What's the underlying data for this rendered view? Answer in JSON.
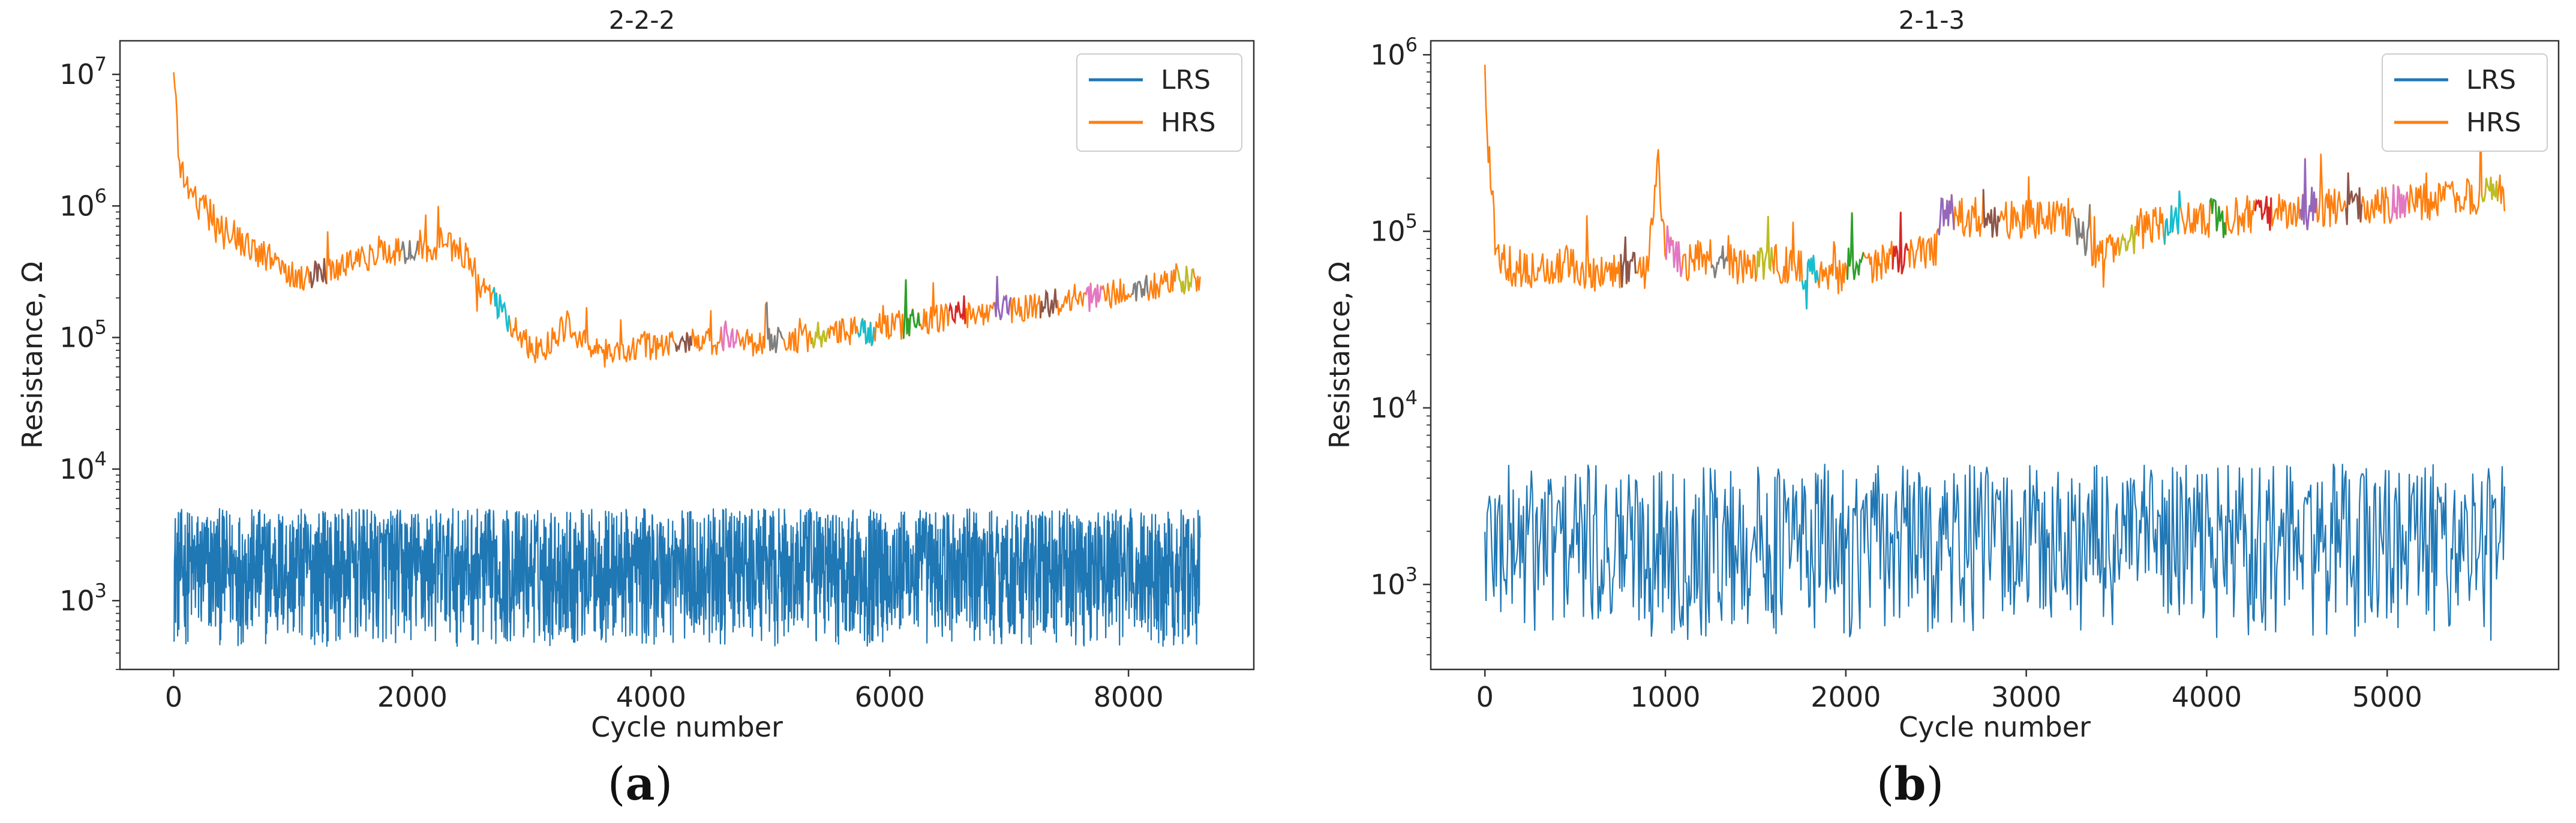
{
  "colors": {
    "lrs": "#1f77b4",
    "hrs": "#ff7f0e",
    "segments": [
      "#2ca02c",
      "#d62728",
      "#9467bd",
      "#8c564b",
      "#e377c2",
      "#7f7f7f",
      "#bcbd22",
      "#17becf"
    ]
  },
  "chart_data": [
    {
      "type": "line",
      "panel_label": "a",
      "title": "2-2-2",
      "xlabel": "Cycle number",
      "ylabel": "Resistance, Ω",
      "yscale": "log",
      "xlim": [
        -450,
        9050
      ],
      "ylim": [
        300,
        18000000
      ],
      "xticks": [
        0,
        2000,
        4000,
        6000,
        8000
      ],
      "xtick_labels": [
        "0",
        "2000",
        "4000",
        "6000",
        "8000"
      ],
      "yticks": [
        1000,
        10000,
        100000,
        1000000,
        10000000
      ],
      "ytick_labels": [
        {
          "base": "10",
          "exp": "3"
        },
        {
          "base": "10",
          "exp": "4"
        },
        {
          "base": "10",
          "exp": "5"
        },
        {
          "base": "10",
          "exp": "6"
        },
        {
          "base": "10",
          "exp": "7"
        }
      ],
      "legend": [
        "LRS",
        "HRS"
      ],
      "legend_position": "top-right",
      "series": [
        {
          "name": "HRS",
          "color": "#ff7f0e",
          "x": [
            0,
            50,
            150,
            300,
            450,
            600,
            800,
            950,
            1100,
            1300,
            1500,
            1700,
            1900,
            2100,
            2300,
            2450,
            2550,
            2700,
            2850,
            3000,
            3150,
            3300,
            3450,
            3550,
            3700,
            3850,
            4000,
            4300,
            4600,
            4900,
            5200,
            5500,
            5800,
            6100,
            6400,
            6700,
            7000,
            7300,
            7600,
            7900,
            8200,
            8400,
            8600
          ],
          "y": [
            10000000,
            2000000,
            1200000,
            900000,
            700000,
            500000,
            400000,
            320000,
            290000,
            330000,
            380000,
            420000,
            450000,
            470000,
            500000,
            420000,
            260000,
            180000,
            120000,
            80000,
            90000,
            130000,
            90000,
            75000,
            78000,
            82000,
            87000,
            92000,
            95000,
            93000,
            98000,
            105000,
            115000,
            125000,
            140000,
            155000,
            165000,
            180000,
            200000,
            215000,
            240000,
            260000,
            285000
          ]
        },
        {
          "name": "LRS",
          "color": "#1f77b4",
          "x": [
            0,
            8600
          ],
          "y_min": 450,
          "y_max": 5000
        }
      ]
    },
    {
      "type": "line",
      "panel_label": "b",
      "title": "2-1-3",
      "xlabel": "Cycle number",
      "ylabel": "Resistance, Ω",
      "yscale": "log",
      "xlim": [
        -300,
        5950
      ],
      "ylim": [
        330,
        1200000
      ],
      "xticks": [
        0,
        1000,
        2000,
        3000,
        4000,
        5000
      ],
      "xtick_labels": [
        "0",
        "1000",
        "2000",
        "3000",
        "4000",
        "5000"
      ],
      "yticks": [
        1000,
        10000,
        100000,
        1000000
      ],
      "ytick_labels": [
        {
          "base": "10",
          "exp": "3"
        },
        {
          "base": "10",
          "exp": "4"
        },
        {
          "base": "10",
          "exp": "5"
        },
        {
          "base": "10",
          "exp": "6"
        }
      ],
      "legend": [
        "LRS",
        "HRS"
      ],
      "legend_position": "top-right",
      "series": [
        {
          "name": "HRS",
          "color": "#ff7f0e",
          "x": [
            0,
            20,
            60,
            150,
            300,
            450,
            600,
            750,
            900,
            960,
            1000,
            1100,
            1200,
            1400,
            1600,
            1800,
            1900,
            2100,
            2300,
            2500,
            2520,
            2700,
            2900,
            3100,
            3250,
            3400,
            3500,
            3700,
            3900,
            4100,
            4300,
            4500,
            4700,
            4900,
            5100,
            5300,
            5500,
            5650
          ],
          "y": [
            700000,
            300000,
            80000,
            62000,
            60000,
            65000,
            58000,
            60000,
            65000,
            230000,
            90000,
            62000,
            72000,
            65000,
            68000,
            58000,
            55000,
            62000,
            70000,
            80000,
            130000,
            118000,
            115000,
            118000,
            120000,
            72000,
            85000,
            105000,
            115000,
            122000,
            125000,
            130000,
            135000,
            140000,
            145000,
            150000,
            158000,
            165000
          ]
        },
        {
          "name": "LRS",
          "color": "#1f77b4",
          "x": [
            0,
            5650
          ],
          "y_min": 480,
          "y_max": 4800
        }
      ]
    }
  ]
}
